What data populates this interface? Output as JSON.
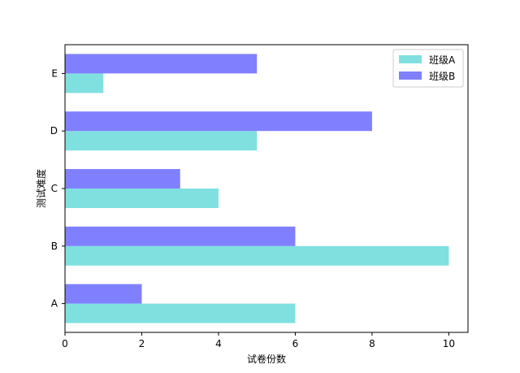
{
  "chart_data": {
    "type": "bar",
    "orientation": "horizontal",
    "categories": [
      "A",
      "B",
      "C",
      "D",
      "E"
    ],
    "series": [
      {
        "name": "班级A",
        "values": [
          6,
          10,
          4,
          5,
          1
        ],
        "color": "#80e0e0"
      },
      {
        "name": "班级B",
        "values": [
          2,
          6,
          3,
          8,
          5
        ],
        "color": "#8080ff"
      }
    ],
    "xlabel": "试卷份数",
    "ylabel": "测试难度",
    "xlim": [
      0,
      10.5
    ],
    "xticks": [
      0,
      2,
      4,
      6,
      8,
      10
    ],
    "grid": false,
    "legend_position": "top-right"
  }
}
